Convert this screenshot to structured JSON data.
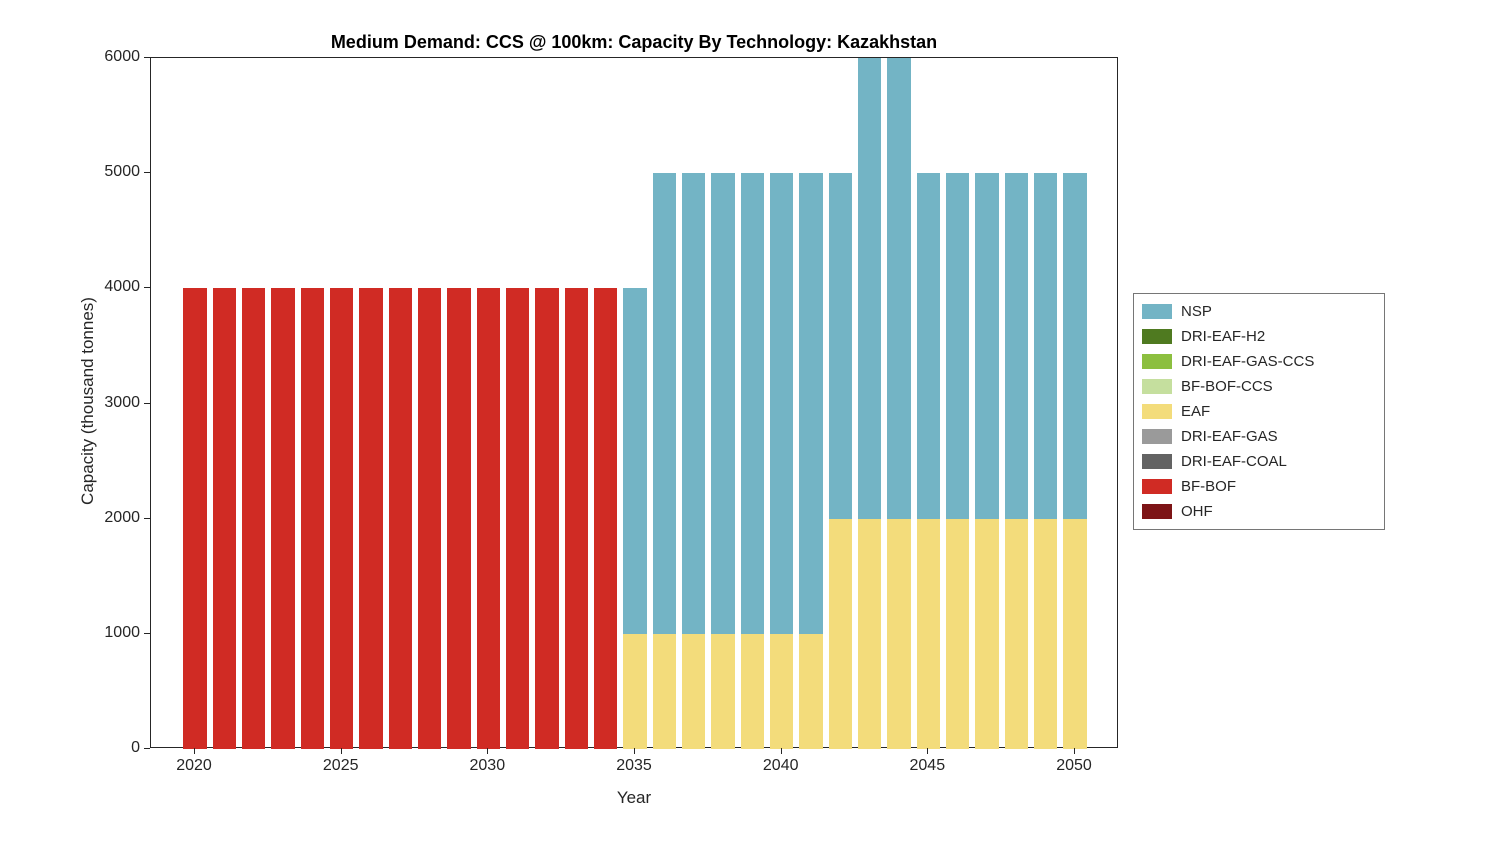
{
  "chart_data": {
    "type": "bar",
    "stacked": true,
    "title": "Medium Demand: CCS @ 100km: Capacity By Technology: Kazakhstan",
    "xlabel": "Year",
    "ylabel": "Capacity (thousand tonnes)",
    "ylim": [
      0,
      6000
    ],
    "xlim": [
      2018.5,
      2051.5
    ],
    "yticks": [
      0,
      1000,
      2000,
      3000,
      4000,
      5000,
      6000
    ],
    "xticks": [
      2020,
      2025,
      2030,
      2035,
      2040,
      2045,
      2050
    ],
    "bar_width_years": 0.8,
    "grid": false,
    "legend_position": "right-outside",
    "years": [
      2020,
      2021,
      2022,
      2023,
      2024,
      2025,
      2026,
      2027,
      2028,
      2029,
      2030,
      2031,
      2032,
      2033,
      2034,
      2035,
      2036,
      2037,
      2038,
      2039,
      2040,
      2041,
      2042,
      2043,
      2044,
      2045,
      2046,
      2047,
      2048,
      2049,
      2050
    ],
    "series": [
      {
        "name": "NSP",
        "color": "#73B4C5",
        "values": [
          0,
          0,
          0,
          0,
          0,
          0,
          0,
          0,
          0,
          0,
          0,
          0,
          0,
          0,
          0,
          3000,
          4000,
          4000,
          4000,
          4000,
          4000,
          4000,
          3000,
          4000,
          4000,
          3000,
          3000,
          3000,
          3000,
          3000,
          3000
        ]
      },
      {
        "name": "DRI-EAF-H2",
        "color": "#4F7A20",
        "values": [
          0,
          0,
          0,
          0,
          0,
          0,
          0,
          0,
          0,
          0,
          0,
          0,
          0,
          0,
          0,
          0,
          0,
          0,
          0,
          0,
          0,
          0,
          0,
          0,
          0,
          0,
          0,
          0,
          0,
          0,
          0
        ]
      },
      {
        "name": "DRI-EAF-GAS-CCS",
        "color": "#8CBF3F",
        "values": [
          0,
          0,
          0,
          0,
          0,
          0,
          0,
          0,
          0,
          0,
          0,
          0,
          0,
          0,
          0,
          0,
          0,
          0,
          0,
          0,
          0,
          0,
          0,
          0,
          0,
          0,
          0,
          0,
          0,
          0,
          0
        ]
      },
      {
        "name": "BF-BOF-CCS",
        "color": "#C5DF9E",
        "values": [
          0,
          0,
          0,
          0,
          0,
          0,
          0,
          0,
          0,
          0,
          0,
          0,
          0,
          0,
          0,
          0,
          0,
          0,
          0,
          0,
          0,
          0,
          0,
          0,
          0,
          0,
          0,
          0,
          0,
          0,
          0
        ]
      },
      {
        "name": "EAF",
        "color": "#F3DC7B",
        "values": [
          0,
          0,
          0,
          0,
          0,
          0,
          0,
          0,
          0,
          0,
          0,
          0,
          0,
          0,
          0,
          1000,
          1000,
          1000,
          1000,
          1000,
          1000,
          1000,
          2000,
          2000,
          2000,
          2000,
          2000,
          2000,
          2000,
          2000,
          2000
        ]
      },
      {
        "name": "DRI-EAF-GAS",
        "color": "#9A9A9A",
        "values": [
          0,
          0,
          0,
          0,
          0,
          0,
          0,
          0,
          0,
          0,
          0,
          0,
          0,
          0,
          0,
          0,
          0,
          0,
          0,
          0,
          0,
          0,
          0,
          0,
          0,
          0,
          0,
          0,
          0,
          0,
          0
        ]
      },
      {
        "name": "DRI-EAF-COAL",
        "color": "#636363",
        "values": [
          0,
          0,
          0,
          0,
          0,
          0,
          0,
          0,
          0,
          0,
          0,
          0,
          0,
          0,
          0,
          0,
          0,
          0,
          0,
          0,
          0,
          0,
          0,
          0,
          0,
          0,
          0,
          0,
          0,
          0,
          0
        ]
      },
      {
        "name": "BF-BOF",
        "color": "#D02B24",
        "values": [
          4000,
          4000,
          4000,
          4000,
          4000,
          4000,
          4000,
          4000,
          4000,
          4000,
          4000,
          4000,
          4000,
          4000,
          4000,
          0,
          0,
          0,
          0,
          0,
          0,
          0,
          0,
          0,
          0,
          0,
          0,
          0,
          0,
          0,
          0
        ]
      },
      {
        "name": "OHF",
        "color": "#7D1416",
        "values": [
          0,
          0,
          0,
          0,
          0,
          0,
          0,
          0,
          0,
          0,
          0,
          0,
          0,
          0,
          0,
          0,
          0,
          0,
          0,
          0,
          0,
          0,
          0,
          0,
          0,
          0,
          0,
          0,
          0,
          0,
          0
        ]
      }
    ]
  }
}
